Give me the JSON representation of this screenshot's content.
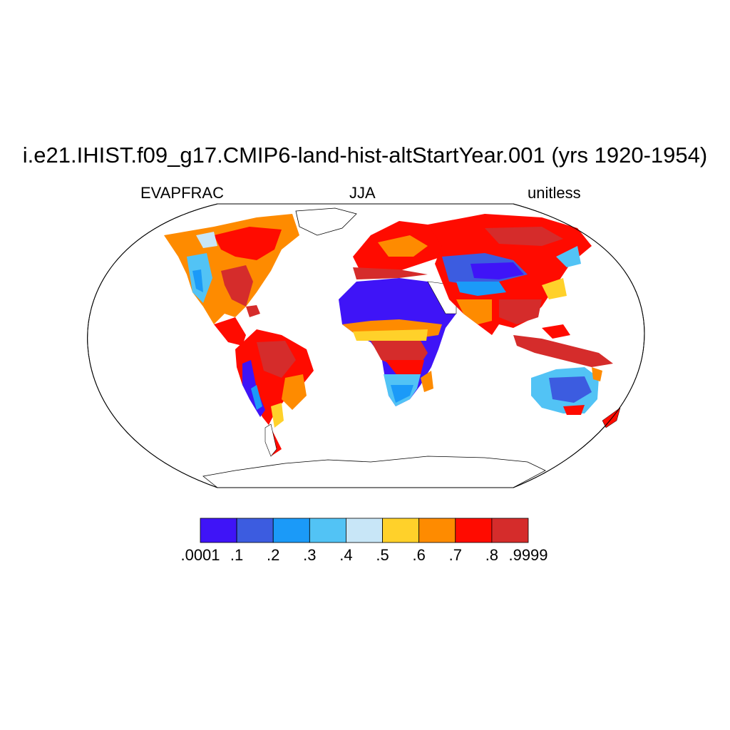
{
  "header": {
    "title": "i.e21.IHIST.f09_g17.CMIP6-land-hist-altStartYear.001 (yrs 1920-1954)",
    "left_label": "EVAPFRAC",
    "center_label": "JJA",
    "right_label": "unitless"
  },
  "colorbar": {
    "colors": [
      "#3f14f7",
      "#3c5ce0",
      "#1b9af8",
      "#52c3f5",
      "#c8e6f7",
      "#ffd12a",
      "#fe8b00",
      "#ff0b00",
      "#d52c2b"
    ],
    "labels": [
      ".0001",
      ".1",
      ".2",
      ".3",
      ".4",
      ".5",
      ".6",
      ".7",
      ".8",
      ".9999"
    ]
  },
  "map": {
    "projection": "Robinson",
    "ocean_color": "#ffffff",
    "outline_color": "#000000"
  }
}
